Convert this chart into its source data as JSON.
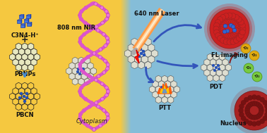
{
  "bg_left_color": "#F5C840",
  "bg_right_color": "#85BDD8",
  "labels": {
    "c3n4": "C3N4-H⁺",
    "pbnps": "PBNPs",
    "pbcn": "PBCN",
    "nir": "808 nm NIR",
    "laser": "640 nm Laser",
    "fl": "FL imaging",
    "pdt": "PDT",
    "ptt": "PTT",
    "cytoplasm": "Cytoplasm",
    "nucleus": "Nucleus",
    "o2": "¹O₂"
  },
  "colors": {
    "blue_cube": "#3B6DC4",
    "honeycomb_gold": "#F5C840",
    "honeycomb_border_dark": "#2A2A2A",
    "honeycomb_white": "#E0E0D0",
    "honeycomb_border_gray": "#555555",
    "pb_blue": "#2255BB",
    "arrow_blue": "#4466CC",
    "red_sphere": "#CC2020",
    "red_dark": "#881111",
    "fire_orange": "#FF5500",
    "fire_yellow": "#FFCC00",
    "fire_blue": "#3366FF",
    "o2_yellow": "#E8AA00",
    "o2_green": "#77CC33",
    "nucleus_red": "#992222",
    "fiber_pink": "#DD66BB",
    "fiber_orange": "#FF9944",
    "label_dark": "#111111",
    "label_mid": "#222222"
  },
  "font_sizes": {
    "label": 6,
    "small": 5
  }
}
